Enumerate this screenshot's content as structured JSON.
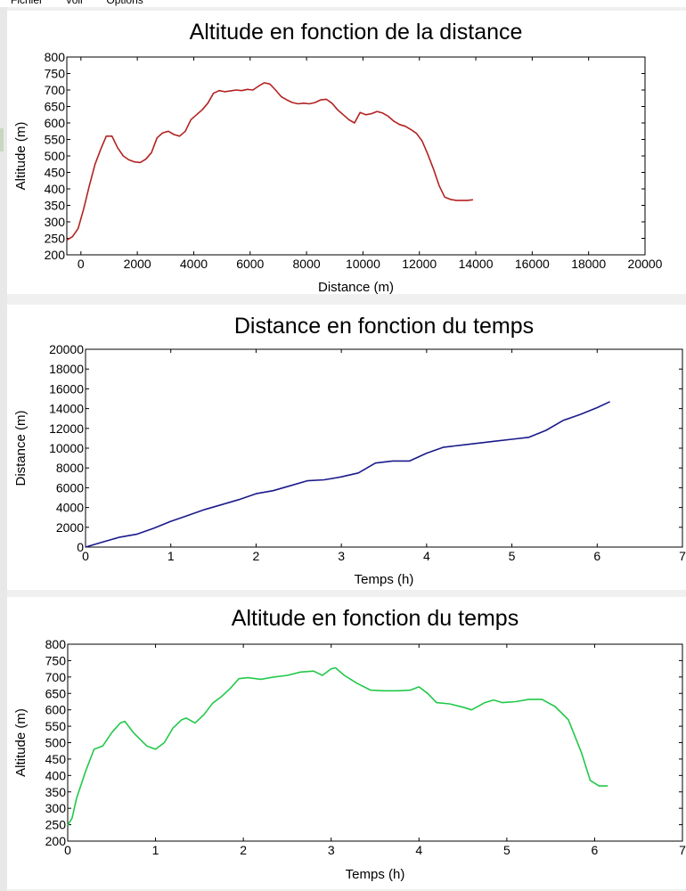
{
  "menu": [
    "Fichier",
    "Voir",
    "Options"
  ],
  "chart_data": [
    {
      "type": "line",
      "title": "Altitude en fonction de la distance",
      "xlabel": "Distance (m)",
      "ylabel": "Altitude (m)",
      "xlim": [
        -500,
        20000
      ],
      "ylim": [
        200,
        800
      ],
      "xticks": [
        0,
        2000,
        4000,
        6000,
        8000,
        10000,
        12000,
        14000,
        16000,
        18000,
        20000
      ],
      "yticks": [
        200,
        250,
        300,
        350,
        400,
        450,
        500,
        550,
        600,
        650,
        700,
        750,
        800
      ],
      "color": "#b22222",
      "series": [
        {
          "x": [
            -500,
            -300,
            -100,
            100,
            300,
            500,
            700,
            900,
            1100,
            1300,
            1500,
            1700,
            1900,
            2100,
            2300,
            2500,
            2700,
            2900,
            3100,
            3300,
            3500,
            3700,
            3900,
            4100,
            4300,
            4500,
            4700,
            4900,
            5100,
            5300,
            5500,
            5700,
            5900,
            6100,
            6300,
            6500,
            6700,
            6900,
            7100,
            7300,
            7500,
            7700,
            7900,
            8100,
            8300,
            8500,
            8700,
            8900,
            9100,
            9300,
            9500,
            9700,
            9900,
            10100,
            10300,
            10500,
            10700,
            10900,
            11100,
            11300,
            11500,
            11700,
            11900,
            12100,
            12300,
            12500,
            12700,
            12900,
            13100,
            13300,
            13500,
            13700,
            13900
          ],
          "y": [
            245,
            255,
            280,
            340,
            410,
            475,
            520,
            560,
            560,
            525,
            500,
            488,
            482,
            480,
            490,
            510,
            555,
            570,
            575,
            565,
            560,
            575,
            610,
            625,
            640,
            660,
            690,
            698,
            695,
            697,
            700,
            698,
            702,
            700,
            712,
            722,
            718,
            700,
            680,
            670,
            662,
            658,
            660,
            658,
            662,
            670,
            672,
            660,
            640,
            625,
            610,
            600,
            632,
            625,
            628,
            635,
            630,
            620,
            605,
            595,
            590,
            580,
            568,
            545,
            505,
            460,
            410,
            375,
            368,
            365,
            365,
            365,
            367
          ]
        }
      ]
    },
    {
      "type": "line",
      "title": "Distance en fonction du temps",
      "xlabel": "Temps (h)",
      "ylabel": "Distance (m)",
      "xlim": [
        0,
        7
      ],
      "ylim": [
        0,
        20000
      ],
      "xticks": [
        0,
        1,
        2,
        3,
        4,
        5,
        6,
        7
      ],
      "yticks": [
        0,
        2000,
        4000,
        6000,
        8000,
        10000,
        12000,
        14000,
        16000,
        18000,
        20000
      ],
      "color": "#1a1a8c",
      "series": [
        {
          "x": [
            0,
            0.2,
            0.4,
            0.6,
            0.8,
            1.0,
            1.2,
            1.4,
            1.6,
            1.8,
            2.0,
            2.2,
            2.4,
            2.6,
            2.8,
            3.0,
            3.2,
            3.4,
            3.6,
            3.8,
            4.0,
            4.2,
            4.4,
            4.6,
            4.8,
            5.0,
            5.2,
            5.4,
            5.6,
            5.8,
            6.0,
            6.15
          ],
          "y": [
            0,
            500,
            1000,
            1300,
            1900,
            2600,
            3200,
            3800,
            4300,
            4800,
            5400,
            5700,
            6200,
            6700,
            6800,
            7100,
            7500,
            8500,
            8700,
            8700,
            9500,
            10100,
            10300,
            10500,
            10700,
            10900,
            11100,
            11800,
            12800,
            13400,
            14100,
            14700
          ]
        }
      ]
    },
    {
      "type": "line",
      "title": "Altitude en fonction du temps",
      "xlabel": "Temps (h)",
      "ylabel": "Altitude (m)",
      "xlim": [
        0,
        7
      ],
      "ylim": [
        200,
        800
      ],
      "xticks": [
        0,
        1,
        2,
        3,
        4,
        5,
        6,
        7
      ],
      "yticks": [
        200,
        250,
        300,
        350,
        400,
        450,
        500,
        550,
        600,
        650,
        700,
        750,
        800
      ],
      "color": "#22c84a",
      "series": [
        {
          "x": [
            0,
            0.05,
            0.1,
            0.2,
            0.3,
            0.4,
            0.5,
            0.6,
            0.65,
            0.75,
            0.9,
            1.0,
            1.1,
            1.2,
            1.3,
            1.35,
            1.45,
            1.55,
            1.65,
            1.75,
            1.85,
            1.95,
            2.05,
            2.2,
            2.35,
            2.5,
            2.65,
            2.8,
            2.9,
            3.0,
            3.05,
            3.15,
            3.3,
            3.45,
            3.6,
            3.75,
            3.9,
            4.0,
            4.1,
            4.2,
            4.35,
            4.5,
            4.6,
            4.75,
            4.85,
            4.95,
            5.1,
            5.25,
            5.4,
            5.55,
            5.7,
            5.85,
            5.95,
            6.05,
            6.15
          ],
          "y": [
            248,
            270,
            330,
            410,
            480,
            490,
            530,
            560,
            565,
            530,
            490,
            480,
            500,
            545,
            570,
            575,
            560,
            585,
            620,
            640,
            665,
            695,
            698,
            693,
            700,
            705,
            715,
            718,
            705,
            725,
            728,
            705,
            680,
            660,
            658,
            658,
            660,
            670,
            650,
            622,
            618,
            608,
            600,
            622,
            630,
            622,
            625,
            632,
            632,
            610,
            570,
            470,
            385,
            368,
            368
          ]
        }
      ]
    }
  ]
}
